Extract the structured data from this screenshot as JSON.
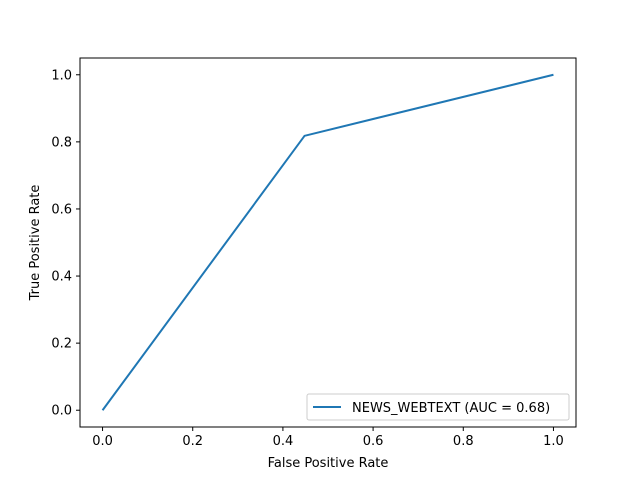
{
  "chart_data": {
    "type": "line",
    "xlabel": "False Positive Rate",
    "ylabel": "True Positive Rate",
    "xlim": [
      -0.05,
      1.05
    ],
    "ylim": [
      -0.05,
      1.05
    ],
    "xticks": [
      0.0,
      0.2,
      0.4,
      0.6,
      0.8,
      1.0
    ],
    "yticks": [
      0.0,
      0.2,
      0.4,
      0.6,
      0.8,
      1.0
    ],
    "xtick_labels": [
      "0.0",
      "0.2",
      "0.4",
      "0.6",
      "0.8",
      "1.0"
    ],
    "ytick_labels": [
      "0.0",
      "0.2",
      "0.4",
      "0.6",
      "0.8",
      "1.0"
    ],
    "grid": false,
    "legend_position": "lower-right",
    "series": [
      {
        "name": "NEWS_WEBTEXT (AUC = 0.68)",
        "color": "#1f77b4",
        "x": [
          0.0,
          0.448,
          1.0
        ],
        "y": [
          0.0,
          0.818,
          1.0
        ]
      }
    ]
  }
}
